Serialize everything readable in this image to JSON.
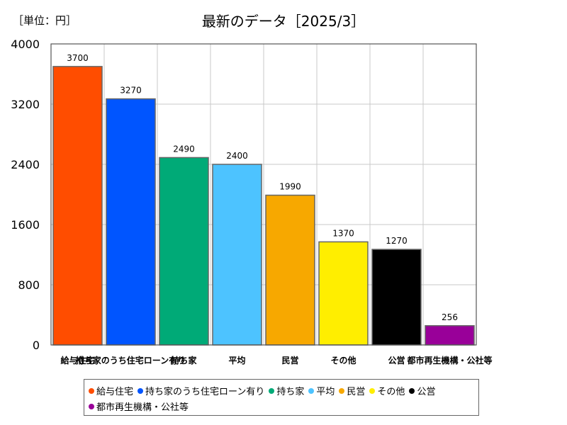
{
  "unit_label": "［単位：円］",
  "chart_data": {
    "type": "bar",
    "title": "最新のデータ［2025/3］",
    "categories": [
      "給与住宅",
      "持ち家のうち住宅ローン有り",
      "持ち家",
      "平均",
      "民営",
      "その他",
      "公営",
      "都市再生機構・公社等"
    ],
    "values": [
      3700,
      3270,
      2490,
      2400,
      1990,
      1370,
      1270,
      256
    ],
    "colors": [
      "#ff4d00",
      "#0055ff",
      "#00aa77",
      "#4dc3ff",
      "#f7a800",
      "#ffee00",
      "#000000",
      "#990099"
    ],
    "y_ticks": [
      "0",
      "800",
      "1600",
      "2400",
      "3200",
      "4000"
    ],
    "ylim": [
      0,
      4000
    ],
    "grid": true,
    "legend_placement": "bottom"
  }
}
